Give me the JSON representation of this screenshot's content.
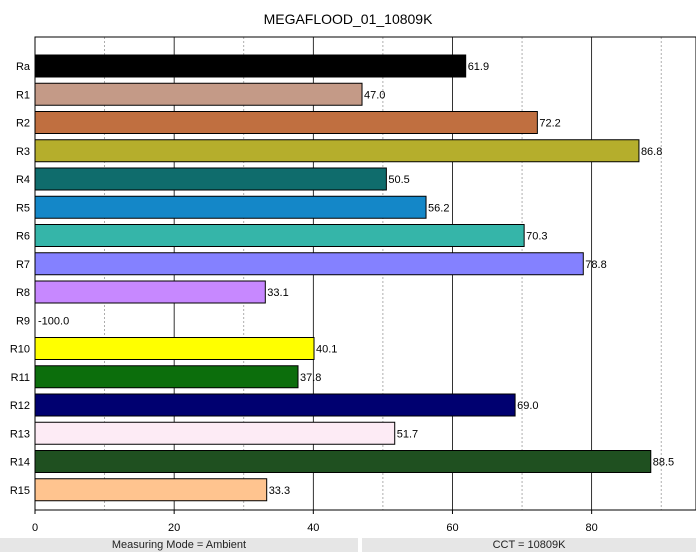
{
  "chart_data": {
    "type": "bar",
    "orientation": "horizontal",
    "title": "MEGAFLOOD_01_10809K",
    "categories": [
      "Ra",
      "R1",
      "R2",
      "R3",
      "R4",
      "R5",
      "R6",
      "R7",
      "R8",
      "R9",
      "R10",
      "R11",
      "R12",
      "R13",
      "R14",
      "R15"
    ],
    "values": [
      61.9,
      47.0,
      72.2,
      86.8,
      50.5,
      56.2,
      70.3,
      78.8,
      33.1,
      -100.0,
      40.1,
      37.8,
      69.0,
      51.7,
      88.5,
      33.3
    ],
    "value_labels": [
      "61.9",
      "47.0",
      "72.2",
      "86.8",
      "50.5",
      "56.2",
      "70.3",
      "78.8",
      "33.1",
      "-100.0",
      "40.1",
      "37.8",
      "69.0",
      "51.7",
      "88.5",
      "33.3"
    ],
    "colors": [
      "#000000",
      "#c49a87",
      "#c06f40",
      "#b5ae2c",
      "#0f6c6c",
      "#1487c8",
      "#35b5a9",
      "#8481ff",
      "#c788ff",
      "#ffffff",
      "#ffff00",
      "#0c6e0c",
      "#000070",
      "#fdebf5",
      "#1f5020",
      "#ffc48f"
    ],
    "xlim": [
      0,
      95
    ],
    "x_ticks": [
      0,
      20,
      40,
      60,
      80
    ],
    "x_tick_labels": [
      "0",
      "20",
      "40",
      "60",
      "80"
    ],
    "major_grid": [
      20,
      40,
      60,
      80
    ],
    "minor_grid": [
      10,
      30,
      50,
      70,
      90
    ],
    "grid": true,
    "xlabel": "",
    "ylabel": ""
  },
  "footer": {
    "measuring_mode": "Measuring Mode = Ambient",
    "cct": "CCT = 10809K"
  }
}
